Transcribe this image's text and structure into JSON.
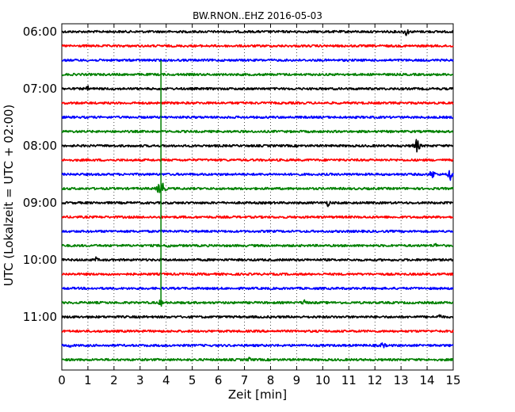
{
  "chart_data": {
    "type": "line",
    "title": "BW.RNON..EHZ 2016-05-03",
    "xlabel": "Zeit  [min]",
    "ylabel": "UTC (Lokalzeit = UTC + 02:00)",
    "xlim": [
      0,
      15
    ],
    "x_ticks": [
      "0",
      "1",
      "2",
      "3",
      "4",
      "5",
      "6",
      "7",
      "8",
      "9",
      "10",
      "11",
      "12",
      "13",
      "14",
      "15"
    ],
    "y_ticks": [
      {
        "label": "06:00",
        "row": 0
      },
      {
        "label": "07:00",
        "row": 4
      },
      {
        "label": "08:00",
        "row": 8
      },
      {
        "label": "09:00",
        "row": 12
      },
      {
        "label": "10:00",
        "row": 16
      },
      {
        "label": "11:00",
        "row": 20
      }
    ],
    "grid": "vertical dotted",
    "row_interval_min": 15,
    "trace_colors": [
      "#000000",
      "#ff0000",
      "#0000ff",
      "#008000"
    ],
    "traces": [
      {
        "start": "06:00",
        "color": "#000000",
        "events": [
          {
            "x": 13.2,
            "amp": 6
          }
        ]
      },
      {
        "start": "06:15",
        "color": "#ff0000",
        "events": []
      },
      {
        "start": "06:30",
        "color": "#0000ff",
        "events": []
      },
      {
        "start": "06:45",
        "color": "#008000",
        "events": []
      },
      {
        "start": "07:00",
        "color": "#000000",
        "events": [
          {
            "x": 1.0,
            "amp": 4
          }
        ]
      },
      {
        "start": "07:15",
        "color": "#ff0000",
        "events": []
      },
      {
        "start": "07:30",
        "color": "#0000ff",
        "events": []
      },
      {
        "start": "07:45",
        "color": "#008000",
        "events": []
      },
      {
        "start": "08:00",
        "color": "#000000",
        "events": [
          {
            "x": 13.6,
            "amp": 10
          }
        ]
      },
      {
        "start": "08:15",
        "color": "#ff0000",
        "events": []
      },
      {
        "start": "08:30",
        "color": "#0000ff",
        "events": [
          {
            "x": 14.2,
            "amp": 7
          },
          {
            "x": 14.9,
            "amp": 8
          }
        ]
      },
      {
        "start": "08:45",
        "color": "#008000",
        "events": [
          {
            "x": 3.8,
            "amp": 14
          }
        ]
      },
      {
        "start": "09:00",
        "color": "#000000",
        "events": [
          {
            "x": 10.2,
            "amp": 5
          }
        ]
      },
      {
        "start": "09:15",
        "color": "#ff0000",
        "events": []
      },
      {
        "start": "09:30",
        "color": "#0000ff",
        "events": []
      },
      {
        "start": "09:45",
        "color": "#008000",
        "events": [
          {
            "x": 4.1,
            "amp": 4
          },
          {
            "x": 14.3,
            "amp": 4
          }
        ]
      },
      {
        "start": "10:00",
        "color": "#000000",
        "events": [
          {
            "x": 1.3,
            "amp": 4
          }
        ]
      },
      {
        "start": "10:15",
        "color": "#ff0000",
        "events": []
      },
      {
        "start": "10:30",
        "color": "#0000ff",
        "events": []
      },
      {
        "start": "10:45",
        "color": "#008000",
        "events": [
          {
            "x": 3.8,
            "amp": 5
          },
          {
            "x": 9.3,
            "amp": 5
          }
        ]
      },
      {
        "start": "11:00",
        "color": "#000000",
        "events": [
          {
            "x": 14.5,
            "amp": 5
          }
        ]
      },
      {
        "start": "11:15",
        "color": "#ff0000",
        "events": []
      },
      {
        "start": "11:30",
        "color": "#0000ff",
        "events": [
          {
            "x": 0.3,
            "amp": 4
          },
          {
            "x": 12.3,
            "amp": 5
          }
        ]
      },
      {
        "start": "11:45",
        "color": "#008000",
        "events": [
          {
            "x": 7.2,
            "amp": 4
          }
        ]
      }
    ],
    "vertical_event": {
      "x": 3.8,
      "from_row": 2,
      "to_row": 19,
      "color": "#008000"
    }
  }
}
